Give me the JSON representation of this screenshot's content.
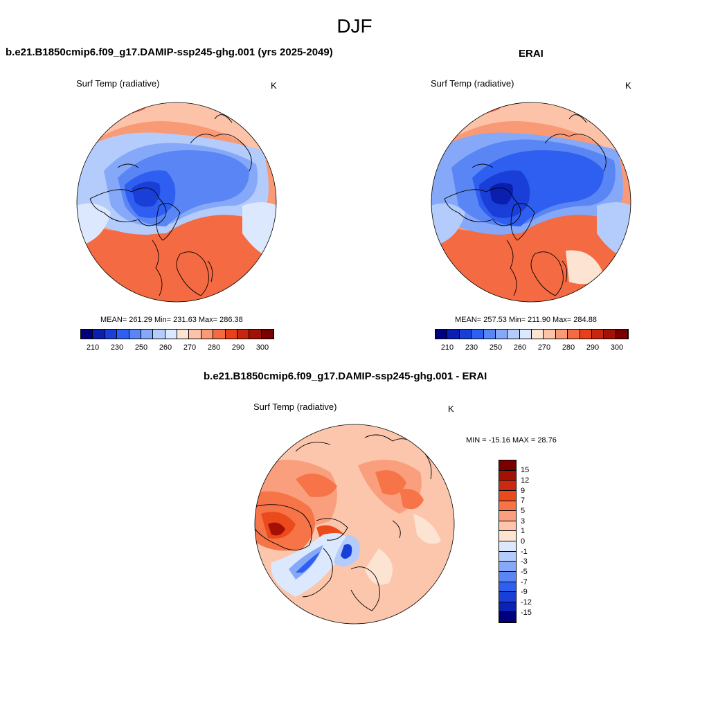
{
  "page_title": "DJF",
  "panels": [
    {
      "title": "b.e21.B1850cmip6.f09_g17.DAMIP-ssp245-ghg.001 (yrs 2025-2049)",
      "variable": "Surf Temp (radiative)",
      "units": "K",
      "stats": "MEAN= 261.29  Min= 231.63  Max= 286.38"
    },
    {
      "title": "ERAI",
      "variable": "Surf Temp (radiative)",
      "units": "K",
      "stats": "MEAN= 257.53  Min= 211.90  Max= 284.88"
    },
    {
      "title": "b.e21.B1850cmip6.f09_g17.DAMIP-ssp245-ghg.001 - ERAI",
      "variable": "Surf Temp (radiative)",
      "units": "K",
      "stats": "MIN = -15.16 MAX =  28.76"
    }
  ],
  "abs_colorbar": {
    "colors": [
      "#00007f",
      "#0a1fb0",
      "#1a3fd8",
      "#2e5ff0",
      "#5a85f5",
      "#86a8f8",
      "#b4ccfb",
      "#dce8fd",
      "#fde4d2",
      "#fcc3a8",
      "#f99a76",
      "#f46a42",
      "#e8411a",
      "#c72710",
      "#a01206",
      "#7a0000"
    ],
    "tick_labels": [
      "210",
      "230",
      "250",
      "260",
      "270",
      "280",
      "290",
      "300"
    ]
  },
  "diff_colorbar": {
    "colors": [
      "#7a0000",
      "#a51005",
      "#cc2a10",
      "#eb4a1c",
      "#f67448",
      "#f99f7d",
      "#fbc6ab",
      "#fde4d2",
      "#dce8fd",
      "#b4ccfb",
      "#86a8f8",
      "#5a85f5",
      "#2e5ff0",
      "#1a3fd8",
      "#0a22b5",
      "#00007f"
    ],
    "tick_labels": [
      "15",
      "12",
      "9",
      "7",
      "5",
      "3",
      "1",
      "0",
      "-1",
      "-3",
      "-5",
      "-7",
      "-9",
      "-12",
      "-15"
    ]
  }
}
